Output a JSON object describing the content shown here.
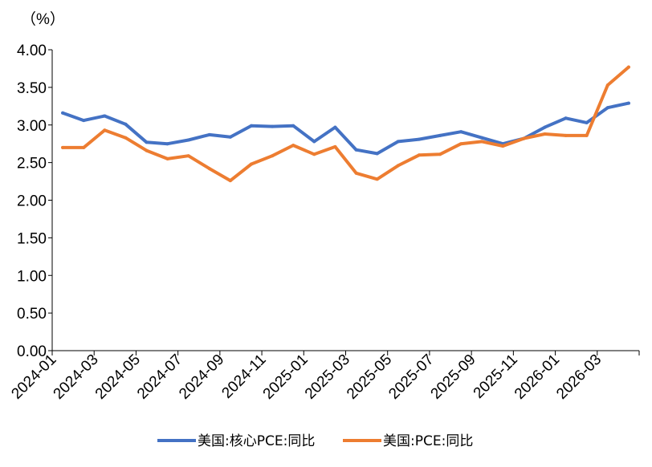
{
  "chart_data": {
    "type": "line",
    "unit_label": "（%）",
    "ylim": [
      0,
      4
    ],
    "y_ticks": [
      "0.00",
      "0.50",
      "1.00",
      "1.50",
      "2.00",
      "2.50",
      "3.00",
      "3.50",
      "4.00"
    ],
    "x_tick_labels": [
      "2024-01",
      "2024-03",
      "2024-05",
      "2024-07",
      "2024-09",
      "2024-11",
      "2025-01",
      "2025-03",
      "2025-05",
      "2025-07",
      "2025-09",
      "2025-11",
      "2026-01",
      "2026-03"
    ],
    "x": [
      "2024-01",
      "2024-02",
      "2024-03",
      "2024-04",
      "2024-05",
      "2024-06",
      "2024-07",
      "2024-08",
      "2024-09",
      "2024-10",
      "2024-11",
      "2024-12",
      "2025-01",
      "2025-02",
      "2025-03",
      "2025-04",
      "2025-05",
      "2025-06",
      "2025-07",
      "2025-08",
      "2025-09",
      "2025-10",
      "2025-11",
      "2025-12",
      "2026-01",
      "2026-02",
      "2026-03",
      "2026-04"
    ],
    "grid": false,
    "legend_position": "bottom",
    "series": [
      {
        "name": "美国:核心PCE:同比",
        "color": "#4472C4",
        "values": [
          3.16,
          3.06,
          3.12,
          3.01,
          2.77,
          2.75,
          2.8,
          2.87,
          2.84,
          2.99,
          2.98,
          2.99,
          2.78,
          2.97,
          2.67,
          2.62,
          2.78,
          2.81,
          2.86,
          2.91,
          2.83,
          2.75,
          2.82,
          2.97,
          3.09,
          3.03,
          3.23,
          3.29
        ]
      },
      {
        "name": "美国:PCE:同比",
        "color": "#ED7D31",
        "values": [
          2.7,
          2.7,
          2.93,
          2.83,
          2.66,
          2.55,
          2.59,
          2.42,
          2.26,
          2.48,
          2.59,
          2.73,
          2.61,
          2.71,
          2.36,
          2.28,
          2.46,
          2.6,
          2.61,
          2.75,
          2.78,
          2.72,
          2.82,
          2.88,
          2.86,
          2.86,
          3.53,
          3.77
        ]
      }
    ]
  }
}
